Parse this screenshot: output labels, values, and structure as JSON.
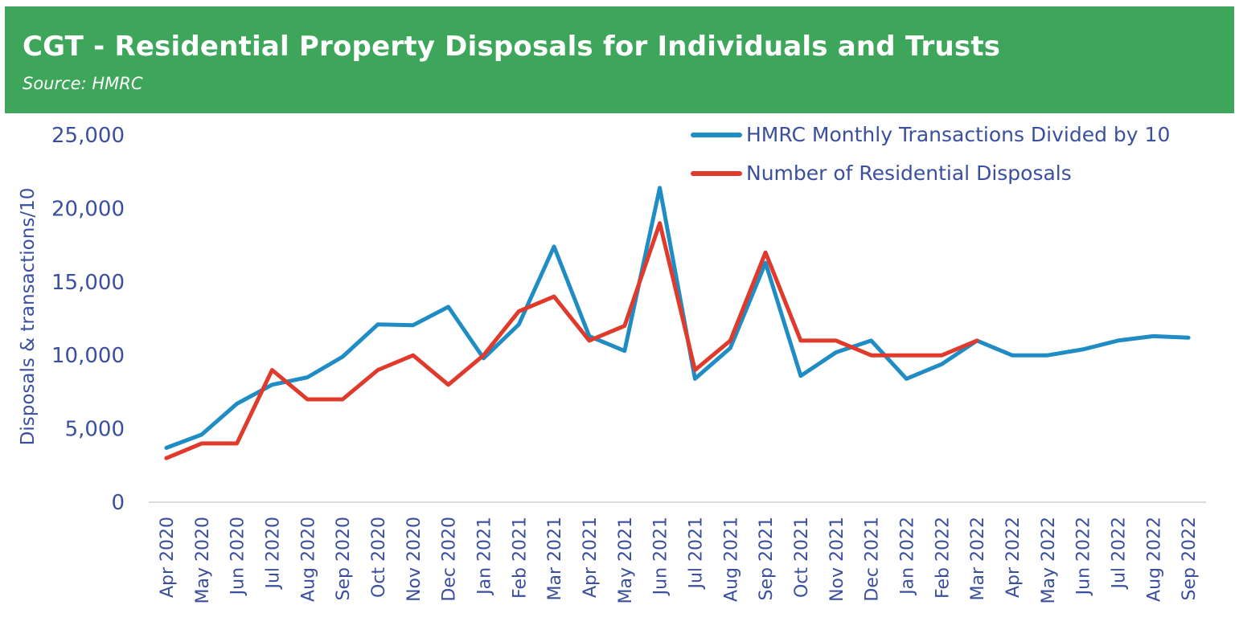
{
  "header": {
    "title": "CGT - Residential Property Disposals for Individuals and Trusts",
    "subtitle": "Source: HMRC"
  },
  "colors": {
    "header_bg": "#3ea65a",
    "text": "#3a4f9e",
    "series_transactions": "#1f8cc4",
    "series_disposals": "#e03a2d",
    "axis_line": "#cfcfcf"
  },
  "chart_data": {
    "type": "line",
    "title": "CGT - Residential Property Disposals for Individuals and Trusts",
    "subtitle": "Source: HMRC",
    "xlabel": "",
    "ylabel": "Disposals & transactions/10",
    "ylim": [
      0,
      25000
    ],
    "yticks": [
      0,
      5000,
      10000,
      15000,
      20000,
      25000
    ],
    "ytick_labels": [
      "0",
      "5,000",
      "10,000",
      "15,000",
      "20,000",
      "25,000"
    ],
    "grid": false,
    "legend_position": "top-right",
    "categories": [
      "Apr 2020",
      "May 2020",
      "Jun 2020",
      "Jul 2020",
      "Aug 2020",
      "Sep 2020",
      "Oct 2020",
      "Nov 2020",
      "Dec 2020",
      "Jan 2021",
      "Feb 2021",
      "Mar 2021",
      "Apr 2021",
      "May 2021",
      "Jun 2021",
      "Jul 2021",
      "Aug 2021",
      "Sep 2021",
      "Oct 2021",
      "Nov 2021",
      "Dec 2021",
      "Jan 2022",
      "Feb 2022",
      "Mar 2022",
      "Apr 2022",
      "May 2022",
      "Jun 2022",
      "Jul 2022",
      "Aug 2022",
      "Sep 2022"
    ],
    "series": [
      {
        "name": "HMRC Monthly Transactions Divided by 10",
        "color": "#1f8cc4",
        "values": [
          3700,
          4600,
          6700,
          8000,
          8500,
          9900,
          12100,
          12050,
          13300,
          9800,
          12100,
          17400,
          11300,
          10300,
          21400,
          8400,
          10500,
          16300,
          8600,
          10200,
          11000,
          8400,
          9400,
          11000,
          10000,
          10000,
          10400,
          11000,
          11300,
          11200
        ]
      },
      {
        "name": "Number of Residential Disposals",
        "color": "#e03a2d",
        "values": [
          3000,
          4000,
          4000,
          9000,
          7000,
          7000,
          9000,
          10000,
          8000,
          10000,
          13000,
          14000,
          11000,
          12000,
          19000,
          9000,
          11000,
          17000,
          11000,
          11000,
          10000,
          10000,
          10000,
          11000,
          null,
          null,
          null,
          null,
          null,
          null
        ]
      }
    ]
  }
}
